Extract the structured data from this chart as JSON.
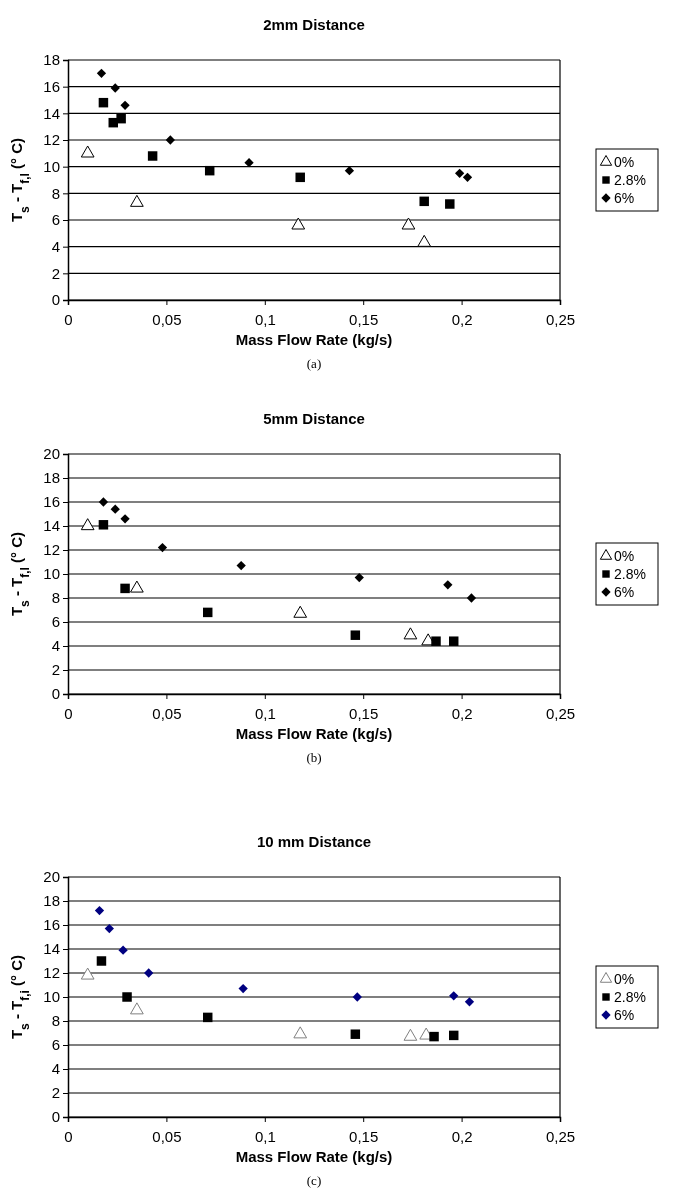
{
  "chart_data": [
    {
      "type": "scatter",
      "title": "2mm Distance",
      "xlabel": "Mass Flow Rate (kg/s)",
      "ylabel": "T$_{s}$ - T$_{f,l}$  (° C)",
      "annotations": [
        "(a)"
      ],
      "xlim": [
        0,
        0.25
      ],
      "ylim": [
        0,
        18
      ],
      "xticks": [
        {
          "value": 0,
          "label": "0"
        },
        {
          "value": 0.05,
          "label": "0,05"
        },
        {
          "value": 0.1,
          "label": "0,1"
        },
        {
          "value": 0.15,
          "label": "0,15"
        },
        {
          "value": 0.2,
          "label": "0,2"
        },
        {
          "value": 0.25,
          "label": "0,25"
        }
      ],
      "yticks": [
        0,
        2,
        4,
        6,
        8,
        10,
        12,
        14,
        16,
        18
      ],
      "grid": "y",
      "legend": "right",
      "series": [
        {
          "name": "0%",
          "color": "#000000",
          "marker": "triangle",
          "x": [
            0.01,
            0.035,
            0.117,
            0.173,
            0.181
          ],
          "values": [
            11.0,
            7.3,
            5.6,
            5.6,
            4.3
          ]
        },
        {
          "name": "2.8%",
          "color": "#000000",
          "marker": "square",
          "x": [
            0.018,
            0.023,
            0.027,
            0.043,
            0.072,
            0.118,
            0.181,
            0.194
          ],
          "values": [
            14.8,
            13.3,
            13.6,
            10.8,
            9.7,
            9.2,
            7.4,
            7.2
          ]
        },
        {
          "name": "6%",
          "color": "#000000",
          "marker": "diamond",
          "x": [
            0.017,
            0.024,
            0.029,
            0.052,
            0.092,
            0.143,
            0.199,
            0.203
          ],
          "values": [
            17.0,
            15.9,
            14.6,
            12.0,
            10.3,
            9.7,
            9.5,
            9.2
          ]
        }
      ]
    },
    {
      "type": "scatter",
      "title": "5mm  Distance",
      "xlabel": "Mass Flow Rate (kg/s)",
      "ylabel": "T$_{s}$ - T$_{f,l}$  (° C)",
      "annotations": [
        "(b)"
      ],
      "xlim": [
        0,
        0.25
      ],
      "ylim": [
        0,
        20
      ],
      "xticks": [
        {
          "value": 0,
          "label": "0"
        },
        {
          "value": 0.05,
          "label": "0,05"
        },
        {
          "value": 0.1,
          "label": "0,1"
        },
        {
          "value": 0.15,
          "label": "0,15"
        },
        {
          "value": 0.2,
          "label": "0,2"
        },
        {
          "value": 0.25,
          "label": "0,25"
        }
      ],
      "yticks": [
        0,
        2,
        4,
        6,
        8,
        10,
        12,
        14,
        16,
        18,
        20
      ],
      "grid": "y",
      "legend": "right",
      "series": [
        {
          "name": "0%",
          "color": "#000000",
          "marker": "triangle",
          "x": [
            0.01,
            0.035,
            0.118,
            0.174,
            0.183
          ],
          "values": [
            14.0,
            8.8,
            6.7,
            4.9,
            4.4
          ]
        },
        {
          "name": "2.8%",
          "color": "#000000",
          "marker": "square",
          "x": [
            0.018,
            0.029,
            0.071,
            0.146,
            0.187,
            0.196
          ],
          "values": [
            14.1,
            8.8,
            6.8,
            4.9,
            4.4,
            4.4
          ]
        },
        {
          "name": "6%",
          "color": "#000000",
          "marker": "diamond",
          "x": [
            0.018,
            0.024,
            0.029,
            0.048,
            0.088,
            0.148,
            0.193,
            0.205
          ],
          "values": [
            16.0,
            15.4,
            14.6,
            12.2,
            10.7,
            9.7,
            9.1,
            8.0
          ]
        }
      ]
    },
    {
      "type": "scatter",
      "title": "10 mm   Distance",
      "xlabel": "Mass Flow Rate (kg/s)",
      "ylabel": "T$_{s}$ - T$_{f,i}$  (° C)",
      "annotations": [
        "(c)"
      ],
      "xlim": [
        0,
        0.25
      ],
      "ylim": [
        0,
        20
      ],
      "xticks": [
        {
          "value": 0,
          "label": "0"
        },
        {
          "value": 0.05,
          "label": "0,05"
        },
        {
          "value": 0.1,
          "label": "0,1"
        },
        {
          "value": 0.15,
          "label": "0,15"
        },
        {
          "value": 0.2,
          "label": "0,2"
        },
        {
          "value": 0.25,
          "label": "0,25"
        }
      ],
      "yticks": [
        0,
        2,
        4,
        6,
        8,
        10,
        12,
        14,
        16,
        18,
        20
      ],
      "grid": "y",
      "legend": "right",
      "series": [
        {
          "name": "0%",
          "color": "#808080",
          "marker": "triangle",
          "x": [
            0.01,
            0.035,
            0.118,
            0.174,
            0.182
          ],
          "values": [
            11.8,
            8.9,
            6.9,
            6.7,
            6.8
          ]
        },
        {
          "name": "2.8%",
          "color": "#000000",
          "marker": "square",
          "x": [
            0.017,
            0.03,
            0.071,
            0.146,
            0.186,
            0.196
          ],
          "values": [
            13.0,
            10.0,
            8.3,
            6.9,
            6.7,
            6.8
          ]
        },
        {
          "name": "6%",
          "color": "#000080",
          "marker": "diamond",
          "x": [
            0.016,
            0.021,
            0.028,
            0.041,
            0.089,
            0.147,
            0.196,
            0.204
          ],
          "values": [
            17.2,
            15.7,
            13.9,
            12.0,
            10.7,
            10.0,
            10.1,
            9.6
          ]
        }
      ]
    }
  ]
}
